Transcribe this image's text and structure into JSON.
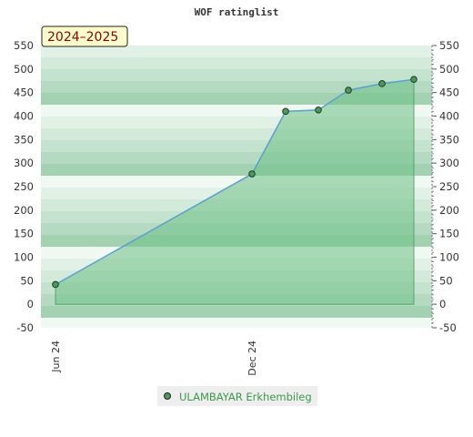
{
  "chart_data": {
    "type": "area",
    "title": "WOF ratinglist",
    "season_label": "2024–2025",
    "xlabel": "",
    "ylabel": "",
    "ylim": [
      -50,
      550
    ],
    "yticks": [
      -50,
      0,
      50,
      100,
      150,
      200,
      250,
      300,
      350,
      400,
      450,
      500,
      550
    ],
    "x_tick_labels": [
      "Jun 24",
      "Dec 24"
    ],
    "grid": true,
    "legend_position": "bottom-center",
    "colors": {
      "line": "#5aa0d0",
      "fill": "#6dbf85",
      "marker": "#4a9a5a",
      "legend_text": "#3a9a4a",
      "season_box": "#ffffcc",
      "season_text": "#8b0000"
    },
    "series": [
      {
        "name": "ULAMBAYAR Erkhembileg",
        "points": [
          {
            "x": "Jun 24",
            "y": 42
          },
          {
            "x": "Dec 24",
            "y": 277
          },
          {
            "x": "",
            "y": 410
          },
          {
            "x": "",
            "y": 413
          },
          {
            "x": "",
            "y": 455
          },
          {
            "x": "",
            "y": 469
          },
          {
            "x": "",
            "y": 478
          }
        ]
      }
    ]
  }
}
